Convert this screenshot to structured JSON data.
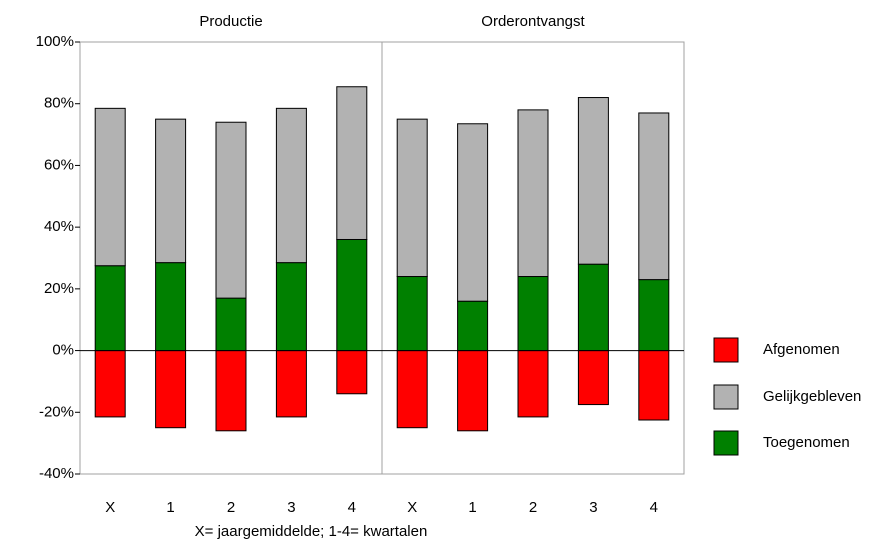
{
  "chart_data": {
    "type": "bar",
    "stacked": true,
    "panel_titles": [
      "Productie",
      "Orderontvangst"
    ],
    "xlabel": "X= jaargemiddelde; 1-4= kwartalen",
    "categories": [
      "X",
      "1",
      "2",
      "3",
      "4",
      "X",
      "1",
      "2",
      "3",
      "4"
    ],
    "series": [
      {
        "name": "Afgenomen",
        "color": "#ff0000",
        "values": [
          -21.5,
          -25,
          -26,
          -21.5,
          -14,
          -25,
          -26,
          -21.5,
          -17.5,
          -22.5
        ]
      },
      {
        "name": "Gelijkgebleven",
        "color": "#b2b2b2",
        "values": [
          51,
          46.5,
          57,
          50,
          49.5,
          51,
          57.5,
          54,
          54,
          54
        ]
      },
      {
        "name": "Toegenomen",
        "color": "#008000",
        "values": [
          27.5,
          28.5,
          17,
          28.5,
          36,
          24,
          16,
          24,
          28,
          23
        ]
      }
    ],
    "ylim": [
      -40,
      100
    ],
    "yticks": [
      {
        "value": -40,
        "label": "-40%"
      },
      {
        "value": -20,
        "label": "-20%"
      },
      {
        "value": 0,
        "label": "0%"
      },
      {
        "value": 20,
        "label": "20%"
      },
      {
        "value": 40,
        "label": "40%"
      },
      {
        "value": 60,
        "label": "60%"
      },
      {
        "value": 80,
        "label": "80%"
      },
      {
        "value": 100,
        "label": "100%"
      }
    ],
    "legend": "right"
  }
}
